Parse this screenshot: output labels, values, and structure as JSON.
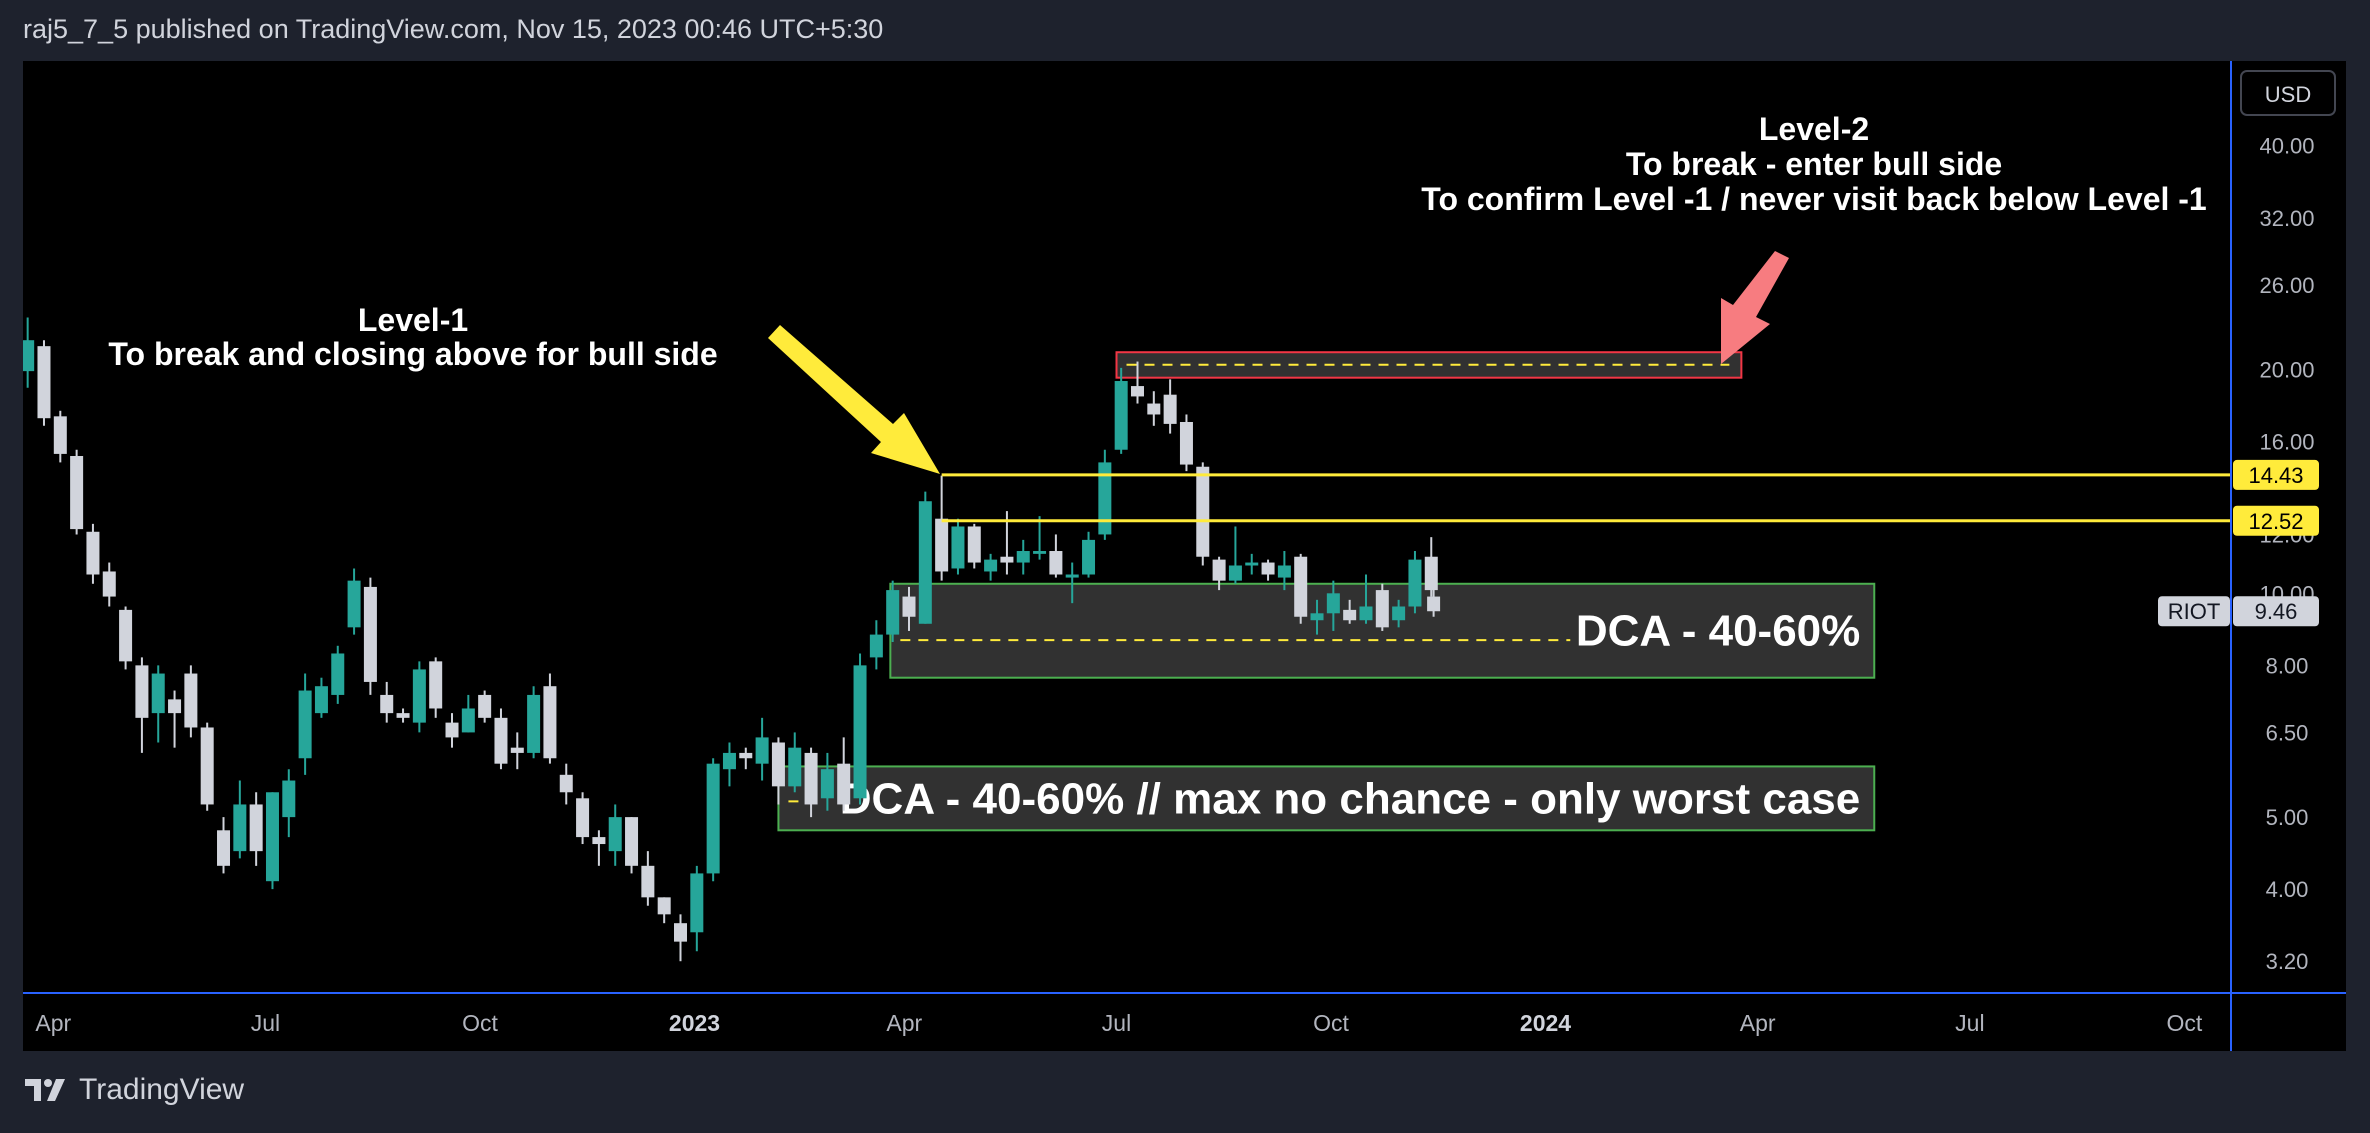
{
  "header": {
    "publish_info": "raj5_7_5 published on TradingView.com, Nov 15, 2023 00:46 UTC+5:30"
  },
  "footer": {
    "brand": "TradingView"
  },
  "colors": {
    "background": "#000000",
    "frame": "#1e222d",
    "up": "#26a69a",
    "down": "#d1d4dc",
    "level_line": "#ffeb3b",
    "arrow_yellow": "#ffeb3b",
    "arrow_red": "#f77c80",
    "zone_fill": "#3a3a3a",
    "zone_border_green": "#4caf50",
    "zone_border_red": "#f23645",
    "axis_line": "#2962ff"
  },
  "chart_data": {
    "type": "candlestick",
    "symbol": "RIOT",
    "currency_button": "USD",
    "last_price": "9.46",
    "y_scale": "log",
    "y_range": [
      2.9,
      52
    ],
    "y_ticks": [
      "40.00",
      "32.00",
      "26.00",
      "20.00",
      "16.00",
      "12.00",
      "10.00",
      "8.00",
      "6.50",
      "5.00",
      "4.00",
      "3.20"
    ],
    "x_ticks": [
      {
        "label": "Apr",
        "date": "2022-04-01",
        "bold": false
      },
      {
        "label": "Jul",
        "date": "2022-07-01",
        "bold": false
      },
      {
        "label": "Oct",
        "date": "2022-10-01",
        "bold": false
      },
      {
        "label": "2023",
        "date": "2023-01-01",
        "bold": true
      },
      {
        "label": "Apr",
        "date": "2023-04-01",
        "bold": false
      },
      {
        "label": "Jul",
        "date": "2023-07-01",
        "bold": false
      },
      {
        "label": "Oct",
        "date": "2023-10-01",
        "bold": false
      },
      {
        "label": "2024",
        "date": "2024-01-01",
        "bold": true
      },
      {
        "label": "Apr",
        "date": "2024-04-01",
        "bold": false
      },
      {
        "label": "Jul",
        "date": "2024-07-01",
        "bold": false
      },
      {
        "label": "Oct",
        "date": "2024-10-01",
        "bold": false
      }
    ],
    "x_range": [
      "2022-03-19",
      "2024-10-21"
    ],
    "candles": [
      {
        "d": "2022-03-21",
        "o": 19.9,
        "h": 23.5,
        "l": 18.9,
        "c": 21.9
      },
      {
        "d": "2022-03-28",
        "o": 21.5,
        "h": 21.9,
        "l": 16.8,
        "c": 17.2
      },
      {
        "d": "2022-04-04",
        "o": 17.3,
        "h": 17.6,
        "l": 15.0,
        "c": 15.4
      },
      {
        "d": "2022-04-11",
        "o": 15.3,
        "h": 15.6,
        "l": 12.0,
        "c": 12.2
      },
      {
        "d": "2022-04-18",
        "o": 12.1,
        "h": 12.4,
        "l": 10.3,
        "c": 10.6
      },
      {
        "d": "2022-04-25",
        "o": 10.7,
        "h": 11.0,
        "l": 9.6,
        "c": 9.9
      },
      {
        "d": "2022-05-02",
        "o": 9.5,
        "h": 9.6,
        "l": 7.9,
        "c": 8.1
      },
      {
        "d": "2022-05-09",
        "o": 8.0,
        "h": 8.2,
        "l": 6.1,
        "c": 6.8
      },
      {
        "d": "2022-05-16",
        "o": 6.9,
        "h": 8.0,
        "l": 6.3,
        "c": 7.8
      },
      {
        "d": "2022-05-23",
        "o": 7.2,
        "h": 7.4,
        "l": 6.2,
        "c": 6.9
      },
      {
        "d": "2022-05-30",
        "o": 7.8,
        "h": 8.0,
        "l": 6.4,
        "c": 6.6
      },
      {
        "d": "2022-06-06",
        "o": 6.6,
        "h": 6.7,
        "l": 5.1,
        "c": 5.2
      },
      {
        "d": "2022-06-13",
        "o": 4.8,
        "h": 5.0,
        "l": 4.2,
        "c": 4.3
      },
      {
        "d": "2022-06-20",
        "o": 4.5,
        "h": 5.6,
        "l": 4.4,
        "c": 5.2
      },
      {
        "d": "2022-06-27",
        "o": 5.2,
        "h": 5.4,
        "l": 4.3,
        "c": 4.5
      },
      {
        "d": "2022-07-04",
        "o": 4.1,
        "h": 5.4,
        "l": 4.0,
        "c": 5.4
      },
      {
        "d": "2022-07-11",
        "o": 5.0,
        "h": 5.8,
        "l": 4.7,
        "c": 5.6
      },
      {
        "d": "2022-07-18",
        "o": 6.0,
        "h": 7.8,
        "l": 5.7,
        "c": 7.4
      },
      {
        "d": "2022-07-25",
        "o": 6.9,
        "h": 7.7,
        "l": 6.8,
        "c": 7.5
      },
      {
        "d": "2022-08-01",
        "o": 7.3,
        "h": 8.5,
        "l": 7.1,
        "c": 8.3
      },
      {
        "d": "2022-08-08",
        "o": 9.0,
        "h": 10.8,
        "l": 8.8,
        "c": 10.4
      },
      {
        "d": "2022-08-15",
        "o": 10.2,
        "h": 10.5,
        "l": 7.3,
        "c": 7.6
      },
      {
        "d": "2022-08-22",
        "o": 7.3,
        "h": 7.6,
        "l": 6.7,
        "c": 6.9
      },
      {
        "d": "2022-08-29",
        "o": 6.9,
        "h": 7.0,
        "l": 6.7,
        "c": 6.8
      },
      {
        "d": "2022-09-05",
        "o": 6.7,
        "h": 8.1,
        "l": 6.5,
        "c": 7.9
      },
      {
        "d": "2022-09-12",
        "o": 8.1,
        "h": 8.2,
        "l": 6.8,
        "c": 7.0
      },
      {
        "d": "2022-09-19",
        "o": 6.7,
        "h": 6.9,
        "l": 6.2,
        "c": 6.4
      },
      {
        "d": "2022-09-26",
        "o": 6.5,
        "h": 7.3,
        "l": 6.5,
        "c": 7.0
      },
      {
        "d": "2022-10-03",
        "o": 7.3,
        "h": 7.4,
        "l": 6.7,
        "c": 6.8
      },
      {
        "d": "2022-10-10",
        "o": 6.8,
        "h": 7.0,
        "l": 5.8,
        "c": 5.9
      },
      {
        "d": "2022-10-17",
        "o": 6.2,
        "h": 6.5,
        "l": 5.8,
        "c": 6.1
      },
      {
        "d": "2022-10-24",
        "o": 6.1,
        "h": 7.5,
        "l": 6.0,
        "c": 7.3
      },
      {
        "d": "2022-10-31",
        "o": 7.5,
        "h": 7.8,
        "l": 5.9,
        "c": 6.0
      },
      {
        "d": "2022-11-07",
        "o": 5.7,
        "h": 5.9,
        "l": 5.2,
        "c": 5.4
      },
      {
        "d": "2022-11-14",
        "o": 5.3,
        "h": 5.4,
        "l": 4.6,
        "c": 4.7
      },
      {
        "d": "2022-11-21",
        "o": 4.7,
        "h": 4.8,
        "l": 4.3,
        "c": 4.6
      },
      {
        "d": "2022-11-28",
        "o": 4.5,
        "h": 5.2,
        "l": 4.3,
        "c": 5.0
      },
      {
        "d": "2022-12-05",
        "o": 5.0,
        "h": 5.0,
        "l": 4.2,
        "c": 4.3
      },
      {
        "d": "2022-12-12",
        "o": 4.3,
        "h": 4.5,
        "l": 3.8,
        "c": 3.9
      },
      {
        "d": "2022-12-19",
        "o": 3.9,
        "h": 3.9,
        "l": 3.6,
        "c": 3.7
      },
      {
        "d": "2022-12-26",
        "o": 3.6,
        "h": 3.7,
        "l": 3.2,
        "c": 3.4
      },
      {
        "d": "2023-01-02",
        "o": 3.5,
        "h": 4.3,
        "l": 3.3,
        "c": 4.2
      },
      {
        "d": "2023-01-09",
        "o": 4.2,
        "h": 6.0,
        "l": 4.1,
        "c": 5.9
      },
      {
        "d": "2023-01-16",
        "o": 5.8,
        "h": 6.3,
        "l": 5.5,
        "c": 6.1
      },
      {
        "d": "2023-01-23",
        "o": 6.1,
        "h": 6.2,
        "l": 5.8,
        "c": 6.0
      },
      {
        "d": "2023-01-30",
        "o": 5.9,
        "h": 6.8,
        "l": 5.6,
        "c": 6.4
      },
      {
        "d": "2023-02-06",
        "o": 6.3,
        "h": 6.4,
        "l": 5.2,
        "c": 5.5
      },
      {
        "d": "2023-02-13",
        "o": 5.5,
        "h": 6.5,
        "l": 5.4,
        "c": 6.2
      },
      {
        "d": "2023-02-20",
        "o": 6.1,
        "h": 6.2,
        "l": 5.0,
        "c": 5.2
      },
      {
        "d": "2023-02-27",
        "o": 5.3,
        "h": 6.1,
        "l": 5.1,
        "c": 5.8
      },
      {
        "d": "2023-03-06",
        "o": 5.9,
        "h": 6.4,
        "l": 5.1,
        "c": 5.2
      },
      {
        "d": "2023-03-13",
        "o": 5.3,
        "h": 8.3,
        "l": 5.2,
        "c": 8.0
      },
      {
        "d": "2023-03-20",
        "o": 8.2,
        "h": 9.2,
        "l": 7.9,
        "c": 8.8
      },
      {
        "d": "2023-03-27",
        "o": 8.8,
        "h": 10.4,
        "l": 8.6,
        "c": 10.1
      },
      {
        "d": "2023-04-03",
        "o": 9.9,
        "h": 10.2,
        "l": 8.9,
        "c": 9.3
      },
      {
        "d": "2023-04-10",
        "o": 9.1,
        "h": 13.7,
        "l": 9.1,
        "c": 13.3
      },
      {
        "d": "2023-04-17",
        "o": 12.6,
        "h": 14.4,
        "l": 10.4,
        "c": 10.7
      },
      {
        "d": "2023-04-24",
        "o": 10.8,
        "h": 12.6,
        "l": 10.6,
        "c": 12.3
      },
      {
        "d": "2023-05-01",
        "o": 12.3,
        "h": 12.4,
        "l": 10.8,
        "c": 11.0
      },
      {
        "d": "2023-05-08",
        "o": 10.7,
        "h": 11.3,
        "l": 10.4,
        "c": 11.1
      },
      {
        "d": "2023-05-15",
        "o": 11.2,
        "h": 12.9,
        "l": 10.6,
        "c": 11.0
      },
      {
        "d": "2023-05-22",
        "o": 11.0,
        "h": 11.8,
        "l": 10.6,
        "c": 11.4
      },
      {
        "d": "2023-05-29",
        "o": 11.3,
        "h": 12.7,
        "l": 11.1,
        "c": 11.4
      },
      {
        "d": "2023-06-05",
        "o": 11.4,
        "h": 12.0,
        "l": 10.5,
        "c": 10.6
      },
      {
        "d": "2023-06-12",
        "o": 10.5,
        "h": 11.0,
        "l": 9.7,
        "c": 10.6
      },
      {
        "d": "2023-06-19",
        "o": 10.6,
        "h": 12.1,
        "l": 10.5,
        "c": 11.8
      },
      {
        "d": "2023-06-26",
        "o": 12.0,
        "h": 15.6,
        "l": 11.8,
        "c": 15.0
      },
      {
        "d": "2023-07-03",
        "o": 15.6,
        "h": 20.1,
        "l": 15.4,
        "c": 19.3
      },
      {
        "d": "2023-07-10",
        "o": 19.0,
        "h": 20.5,
        "l": 18.0,
        "c": 18.4
      },
      {
        "d": "2023-07-17",
        "o": 18.0,
        "h": 18.7,
        "l": 16.8,
        "c": 17.4
      },
      {
        "d": "2023-07-24",
        "o": 18.5,
        "h": 19.4,
        "l": 16.4,
        "c": 16.9
      },
      {
        "d": "2023-07-31",
        "o": 17.0,
        "h": 17.4,
        "l": 14.6,
        "c": 14.9
      },
      {
        "d": "2023-08-07",
        "o": 14.8,
        "h": 15.0,
        "l": 10.9,
        "c": 11.2
      },
      {
        "d": "2023-08-14",
        "o": 11.1,
        "h": 11.2,
        "l": 10.1,
        "c": 10.4
      },
      {
        "d": "2023-08-21",
        "o": 10.4,
        "h": 12.3,
        "l": 10.3,
        "c": 10.9
      },
      {
        "d": "2023-08-28",
        "o": 10.9,
        "h": 11.3,
        "l": 10.6,
        "c": 11.0
      },
      {
        "d": "2023-09-04",
        "o": 11.0,
        "h": 11.1,
        "l": 10.4,
        "c": 10.6
      },
      {
        "d": "2023-09-11",
        "o": 10.5,
        "h": 11.4,
        "l": 10.1,
        "c": 10.9
      },
      {
        "d": "2023-09-18",
        "o": 11.2,
        "h": 11.3,
        "l": 9.1,
        "c": 9.3
      },
      {
        "d": "2023-09-25",
        "o": 9.2,
        "h": 9.8,
        "l": 8.8,
        "c": 9.4
      },
      {
        "d": "2023-10-02",
        "o": 9.4,
        "h": 10.4,
        "l": 8.9,
        "c": 10.0
      },
      {
        "d": "2023-10-09",
        "o": 9.5,
        "h": 9.8,
        "l": 9.1,
        "c": 9.2
      },
      {
        "d": "2023-10-16",
        "o": 9.2,
        "h": 10.6,
        "l": 9.1,
        "c": 9.6
      },
      {
        "d": "2023-10-23",
        "o": 10.1,
        "h": 10.3,
        "l": 8.9,
        "c": 9.0
      },
      {
        "d": "2023-10-30",
        "o": 9.2,
        "h": 9.8,
        "l": 9.0,
        "c": 9.6
      },
      {
        "d": "2023-11-06",
        "o": 9.6,
        "h": 11.4,
        "l": 9.4,
        "c": 11.1
      },
      {
        "d": "2023-11-13",
        "o": 11.2,
        "h": 11.9,
        "l": 9.9,
        "c": 10.1
      },
      {
        "d": "2023-11-14",
        "o": 9.9,
        "h": 10.2,
        "l": 9.3,
        "c": 9.46
      }
    ],
    "price_labels": [
      {
        "label": "14.43",
        "value": 14.43,
        "color": "#ffeb3b"
      },
      {
        "label": "12.52",
        "value": 12.52,
        "color": "#ffeb3b"
      }
    ],
    "levels": [
      {
        "value": 14.43,
        "from": "2023-04-17"
      },
      {
        "value": 12.52,
        "from": "2023-04-17"
      }
    ],
    "zones": [
      {
        "label": "DCA - 40-60%",
        "from": "2023-03-26",
        "to": "2024-05-21",
        "low": 7.7,
        "high": 10.3,
        "mid": 8.65,
        "border": "#4caf50"
      },
      {
        "label": "DCA - 40-60% // max no chance - only worst case",
        "from": "2023-02-06",
        "to": "2024-05-21",
        "low": 4.8,
        "high": 5.85,
        "mid": 5.25,
        "border": "#4caf50"
      },
      {
        "label": "",
        "from": "2023-07-01",
        "to": "2024-03-25",
        "low": 19.5,
        "high": 21.1,
        "mid": 20.3,
        "border": "#f23645"
      }
    ],
    "annotations": {
      "level1": [
        "Level-1",
        "To break and closing above for bull side"
      ],
      "level2": [
        "Level-2",
        "To break - enter bull side",
        "To confirm Level -1 / never visit back below Level -1"
      ]
    }
  }
}
